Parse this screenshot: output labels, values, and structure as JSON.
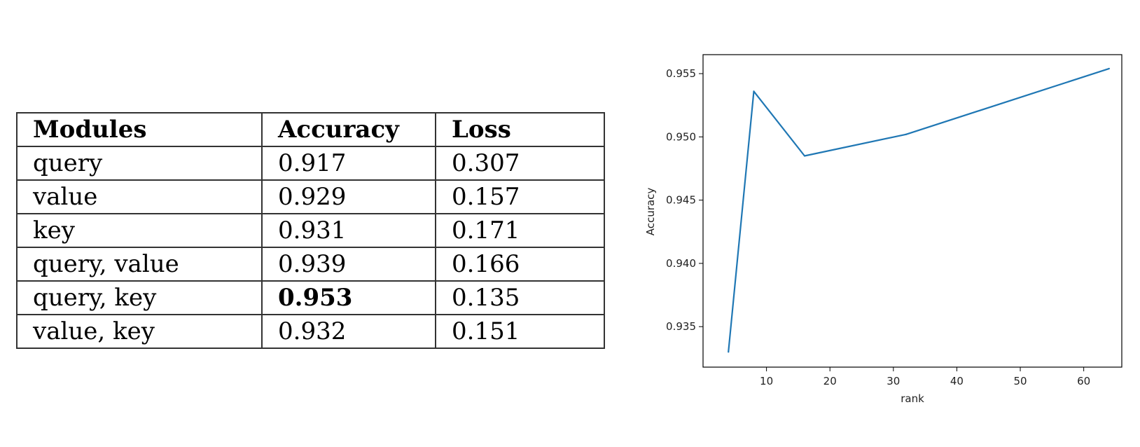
{
  "table": {
    "headers": [
      "Modules",
      "Accuracy",
      "Loss"
    ],
    "rows": [
      {
        "modules": "query",
        "accuracy": "0.917",
        "loss": "0.307",
        "best": false
      },
      {
        "modules": "value",
        "accuracy": "0.929",
        "loss": "0.157",
        "best": false
      },
      {
        "modules": "key",
        "accuracy": "0.931",
        "loss": "0.171",
        "best": false
      },
      {
        "modules": "query, value",
        "accuracy": "0.939",
        "loss": "0.166",
        "best": false
      },
      {
        "modules": "query, key",
        "accuracy": "0.953",
        "loss": "0.135",
        "best": true
      },
      {
        "modules": "value, key",
        "accuracy": "0.932",
        "loss": "0.151",
        "best": false
      }
    ]
  },
  "chart_data": {
    "type": "line",
    "xlabel": "rank",
    "ylabel": "Accuracy",
    "x": [
      4,
      8,
      16,
      32,
      64
    ],
    "series": [
      {
        "values": [
          0.933,
          0.9536,
          0.9485,
          0.9502,
          0.9554
        ],
        "color": "#1f77b4"
      }
    ],
    "xlim": [
      0,
      66
    ],
    "ylim": [
      0.9318,
      0.9565
    ],
    "xticks": [
      10,
      20,
      30,
      40,
      50,
      60
    ],
    "yticks": [
      0.935,
      0.94,
      0.945,
      0.95,
      0.955
    ],
    "xtick_labels": [
      "10",
      "20",
      "30",
      "40",
      "50",
      "60"
    ],
    "ytick_labels": [
      "0.935",
      "0.940",
      "0.945",
      "0.950",
      "0.955"
    ]
  }
}
